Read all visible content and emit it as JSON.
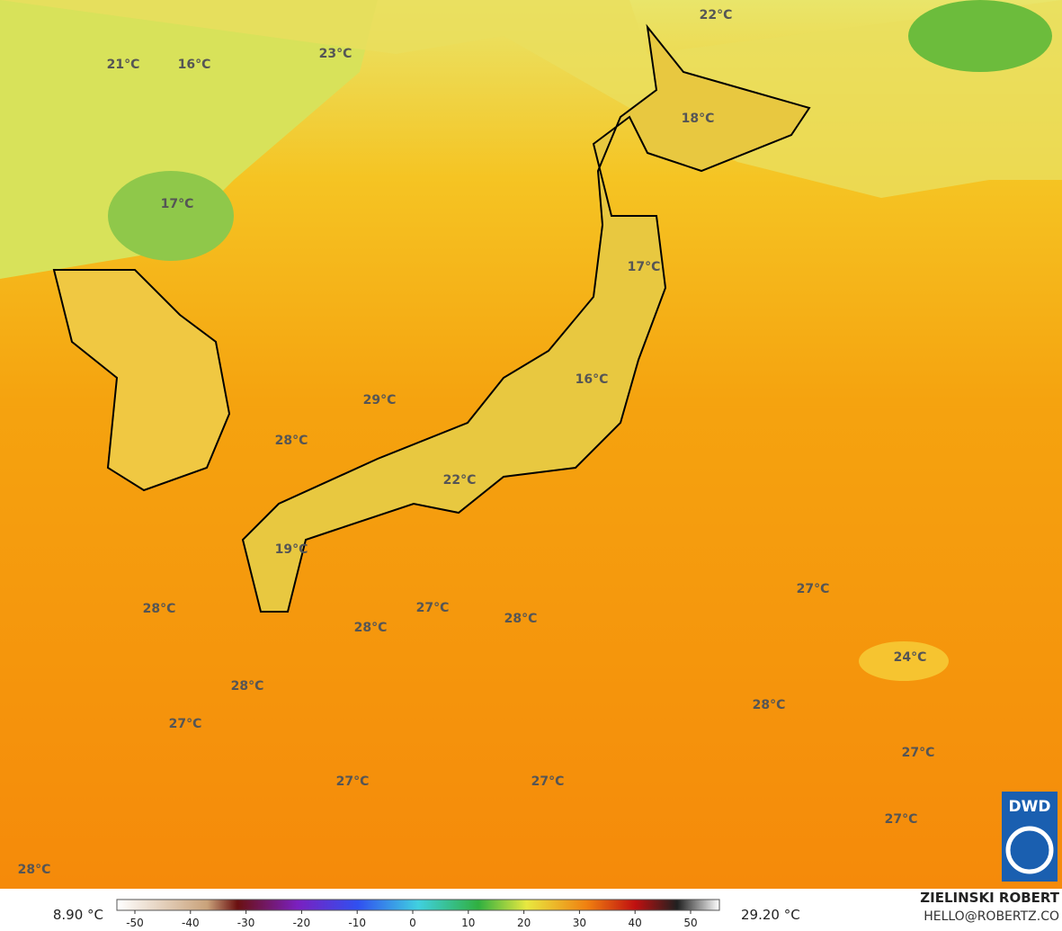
{
  "map": {
    "temperature_labels": [
      "21°C",
      "16°C",
      "23°C",
      "22°C",
      "18°C",
      "17°C",
      "17°C",
      "16°C",
      "29°C",
      "28°C",
      "22°C",
      "19°C",
      "28°C",
      "27°C",
      "28°C",
      "28°C",
      "27°C",
      "24°C",
      "28°C",
      "27°C",
      "28°C",
      "27°C",
      "27°C",
      "27°C",
      "27°C",
      "28°C"
    ],
    "logo": "DWD"
  },
  "colorbar": {
    "min_label": "8.90 °C",
    "max_label": "29.20 °C",
    "ticks": [
      -50,
      -40,
      -30,
      -20,
      -10,
      0,
      10,
      20,
      30,
      40,
      50
    ]
  },
  "credit": {
    "author": "ZIELINSKI ROBERT",
    "contact": "HELLO@ROBERTZ.CO"
  }
}
